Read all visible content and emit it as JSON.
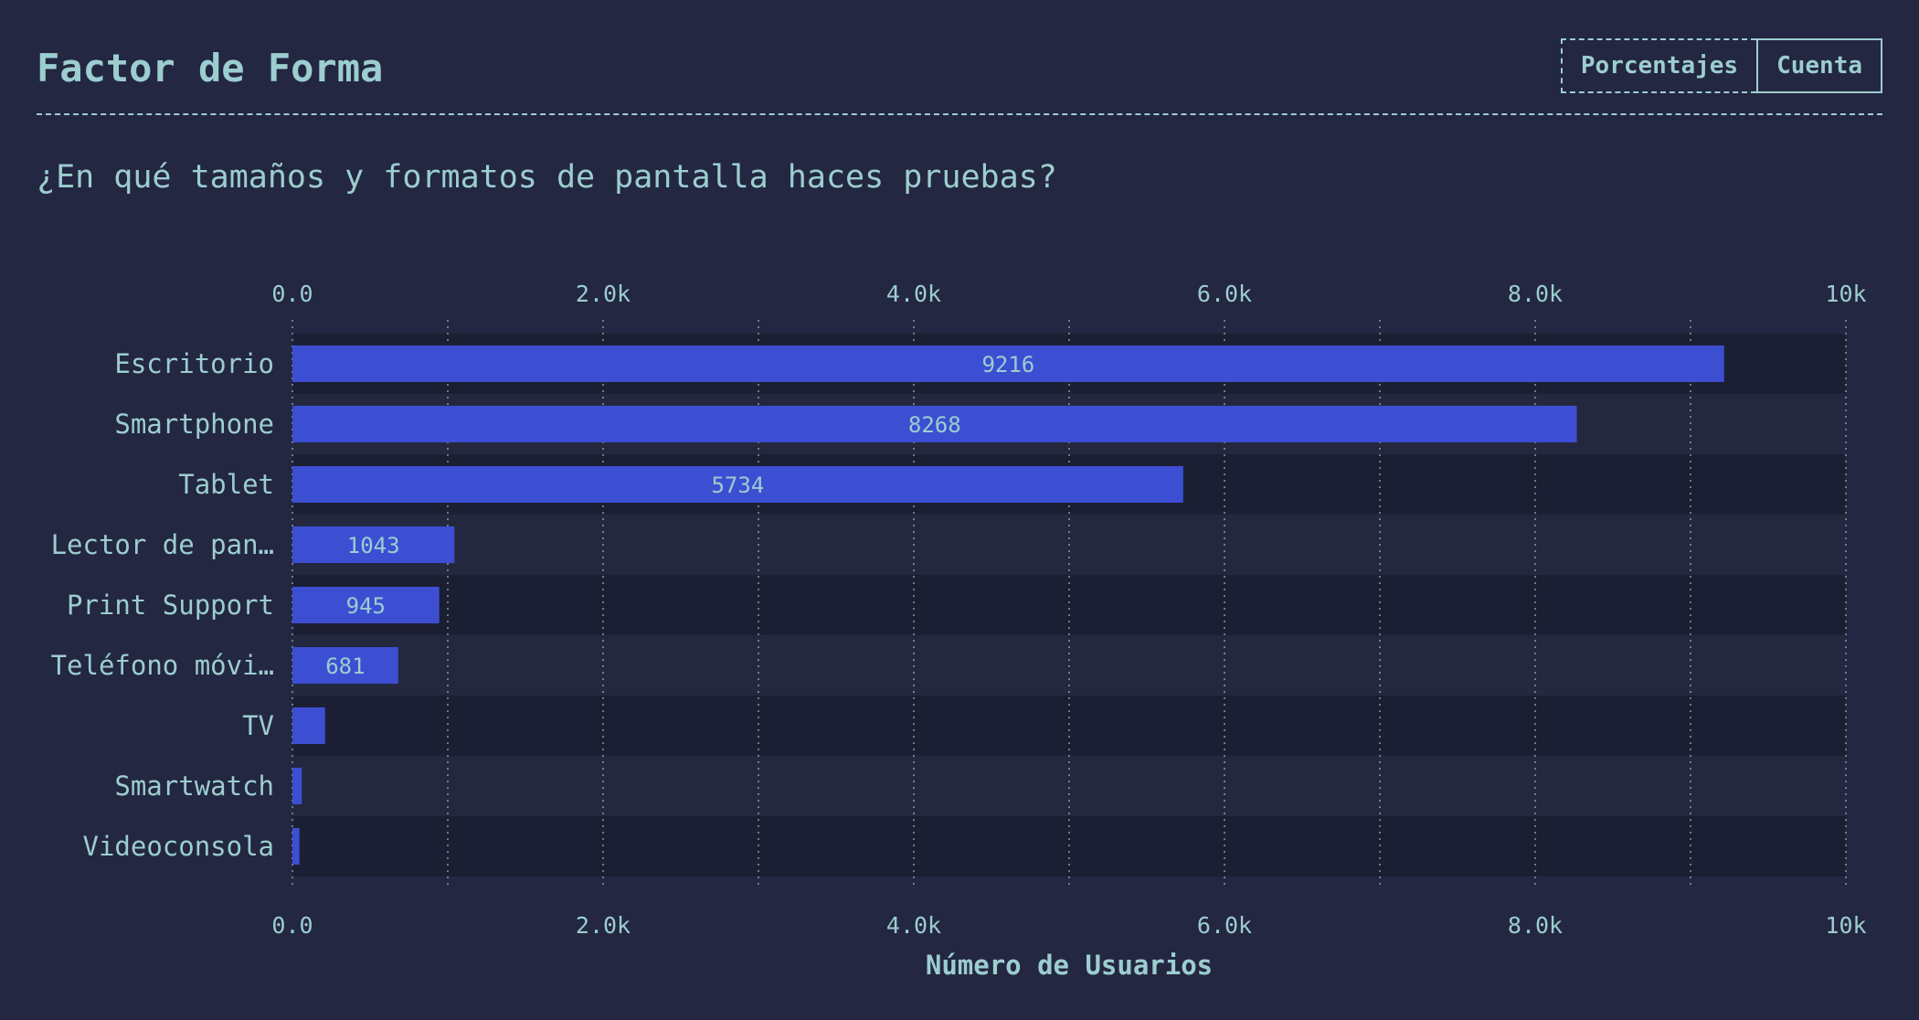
{
  "header": {
    "title": "Factor de Forma",
    "toggle": {
      "percent_label": "Porcentajes",
      "count_label": "Cuenta",
      "selected": "Cuenta"
    }
  },
  "question": "¿En qué tamaños y formatos de pantalla haces pruebas?",
  "colors": {
    "background": "#232741",
    "text": "#9ccdcf",
    "bar": "#3c4fd3",
    "band_dark": "#1c1f33",
    "band_light": "#24283f"
  },
  "chart_data": {
    "type": "bar",
    "orientation": "horizontal",
    "categories": [
      "Escritorio",
      "Smartphone",
      "Tablet",
      "Lector de pan…",
      "Print Support",
      "Teléfono móvi…",
      "TV",
      "Smartwatch",
      "Videoconsola"
    ],
    "values": [
      9216,
      8268,
      5734,
      1043,
      945,
      681,
      210,
      60,
      45
    ],
    "value_labels": [
      "9216",
      "8268",
      "5734",
      "1043",
      "945",
      "681",
      "",
      "",
      ""
    ],
    "xlabel": "Número de Usuarios",
    "ylabel": "",
    "xlim": [
      0,
      10000
    ],
    "x_ticks": [
      0,
      2000,
      4000,
      6000,
      8000,
      10000
    ],
    "x_tick_labels": [
      "0.0",
      "2.0k",
      "4.0k",
      "6.0k",
      "8.0k",
      "10k"
    ],
    "axis_position": "top and bottom",
    "grid": true,
    "grid_style": "dotted"
  }
}
